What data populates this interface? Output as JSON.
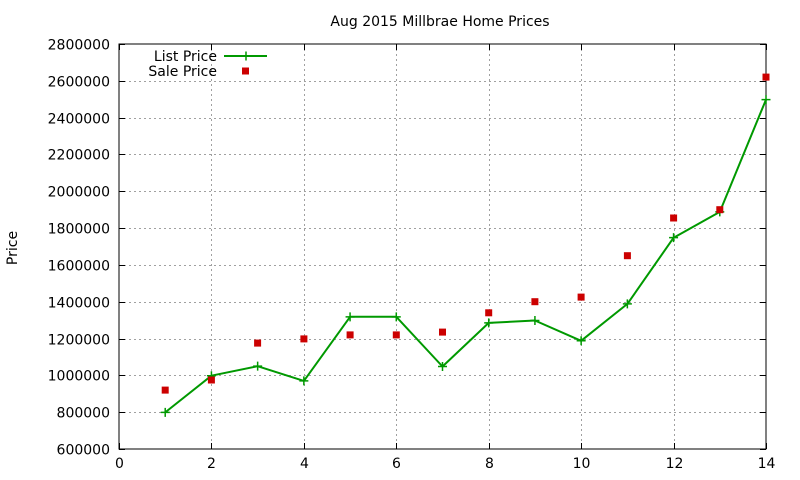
{
  "chart_data": {
    "type": "line",
    "title": "Aug 2015 Millbrae Home Prices",
    "xlabel": "",
    "ylabel": "Price",
    "xlim": [
      0,
      14
    ],
    "ylim": [
      600000,
      2800000
    ],
    "xticks": [
      0,
      2,
      4,
      6,
      8,
      10,
      12,
      14
    ],
    "yticks": [
      600000,
      800000,
      1000000,
      1200000,
      1400000,
      1600000,
      1800000,
      2000000,
      2200000,
      2400000,
      2600000,
      2800000
    ],
    "grid": true,
    "legend_position": "top-left",
    "series": [
      {
        "name": "List Price",
        "style": "line-with-plus-markers",
        "color": "#009900",
        "x": [
          1,
          2,
          3,
          4,
          5,
          6,
          7,
          8,
          9,
          10,
          11,
          12,
          13,
          14
        ],
        "y": [
          799000,
          998000,
          1050000,
          970000,
          1318000,
          1318000,
          1048000,
          1285000,
          1298000,
          1188000,
          1388000,
          1748000,
          1888000,
          2498000
        ]
      },
      {
        "name": "Sale Price",
        "style": "square-markers",
        "color": "#cc0000",
        "x": [
          1,
          2,
          3,
          4,
          5,
          6,
          7,
          8,
          9,
          10,
          11,
          12,
          13,
          14
        ],
        "y": [
          920000,
          975000,
          1175000,
          1198000,
          1220000,
          1220000,
          1235000,
          1340000,
          1400000,
          1425000,
          1650000,
          1855000,
          1900000,
          2620000
        ]
      }
    ]
  }
}
